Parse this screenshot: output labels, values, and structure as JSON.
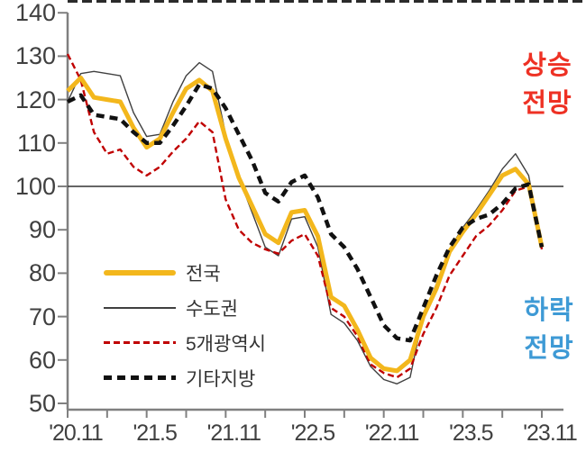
{
  "chart_data": {
    "type": "line",
    "title": "",
    "x": [
      "'20.11",
      "'20.12",
      "'21.1",
      "'21.2",
      "'21.3",
      "'21.4",
      "'21.5",
      "'21.6",
      "'21.7",
      "'21.8",
      "'21.9",
      "'21.10",
      "'21.11",
      "'21.12",
      "'22.1",
      "'22.2",
      "'22.3",
      "'22.4",
      "'22.5",
      "'22.6",
      "'22.7",
      "'22.8",
      "'22.9",
      "'22.10",
      "'22.11",
      "'22.12",
      "'23.1",
      "'23.2",
      "'23.3",
      "'23.4",
      "'23.5",
      "'23.6",
      "'23.7",
      "'23.8",
      "'23.9",
      "'23.10",
      "'23.11"
    ],
    "x_tick_labels": [
      "'20.11",
      "'21.5",
      "'21.11",
      "'22.5",
      "'22.11",
      "'23.5",
      "'23.11"
    ],
    "y_ticks": [
      50,
      60,
      70,
      80,
      90,
      100,
      110,
      120,
      130,
      140
    ],
    "ylim": [
      50,
      140
    ],
    "baseline": 100,
    "grid": "off",
    "legend_position": "inside-lower-left",
    "series": [
      {
        "name": "전국",
        "color": "#F3B71C",
        "style": "solid-thick",
        "values": [
          122,
          125,
          120.5,
          120,
          119.5,
          113.5,
          109,
          111,
          117,
          122.5,
          124.5,
          122,
          111,
          102,
          95.5,
          89,
          87,
          94,
          94.5,
          88.5,
          74.5,
          72.5,
          67,
          60.5,
          58,
          57.5,
          60,
          70,
          76.5,
          85,
          89.5,
          93.5,
          98,
          102.5,
          104,
          100.5,
          86
        ]
      },
      {
        "name": "수도권",
        "color": "#404040",
        "style": "solid-thin",
        "values": [
          119.5,
          126,
          126.5,
          126,
          125.5,
          117,
          111.5,
          112,
          119.5,
          125.5,
          128.5,
          126.5,
          112,
          102,
          94,
          86,
          84,
          92.5,
          93,
          86,
          70.5,
          68.5,
          64.5,
          58.5,
          55.5,
          54.5,
          56,
          70.5,
          77.5,
          85.5,
          90.5,
          94.5,
          99,
          104,
          107.5,
          102.5,
          86.5
        ]
      },
      {
        "name": "5개광역시",
        "color": "#C00000",
        "style": "dashed-thin",
        "values": [
          130.5,
          124.5,
          112.5,
          107.5,
          108.5,
          104.5,
          102.5,
          104.5,
          108,
          111,
          115,
          112.5,
          97,
          90,
          87,
          85.5,
          84.5,
          87.5,
          89,
          84,
          72,
          70,
          65.5,
          59,
          57,
          56,
          58,
          66,
          72,
          79.5,
          84,
          88.5,
          91,
          94.5,
          99,
          100,
          85.5
        ]
      },
      {
        "name": "기타지방",
        "color": "#111111",
        "style": "dashed-thick",
        "values": [
          119.5,
          121,
          116.5,
          116,
          115.5,
          112.5,
          110,
          110,
          114,
          118.5,
          123.5,
          122.5,
          118,
          112,
          106,
          98.5,
          96.5,
          101,
          102.5,
          97.5,
          89,
          86,
          81,
          74.5,
          68,
          65,
          64.5,
          72,
          79.5,
          86,
          90.5,
          92.5,
          93.5,
          96,
          99.5,
          100.5,
          86
        ]
      }
    ],
    "annotations": [
      {
        "id": "rise",
        "line1": "상승",
        "line2": "전망",
        "color": "#EE3124",
        "position": "upper-right"
      },
      {
        "id": "fall",
        "line1": "하락",
        "line2": "전망",
        "color": "#3E9AD5",
        "position": "lower-right"
      }
    ]
  }
}
